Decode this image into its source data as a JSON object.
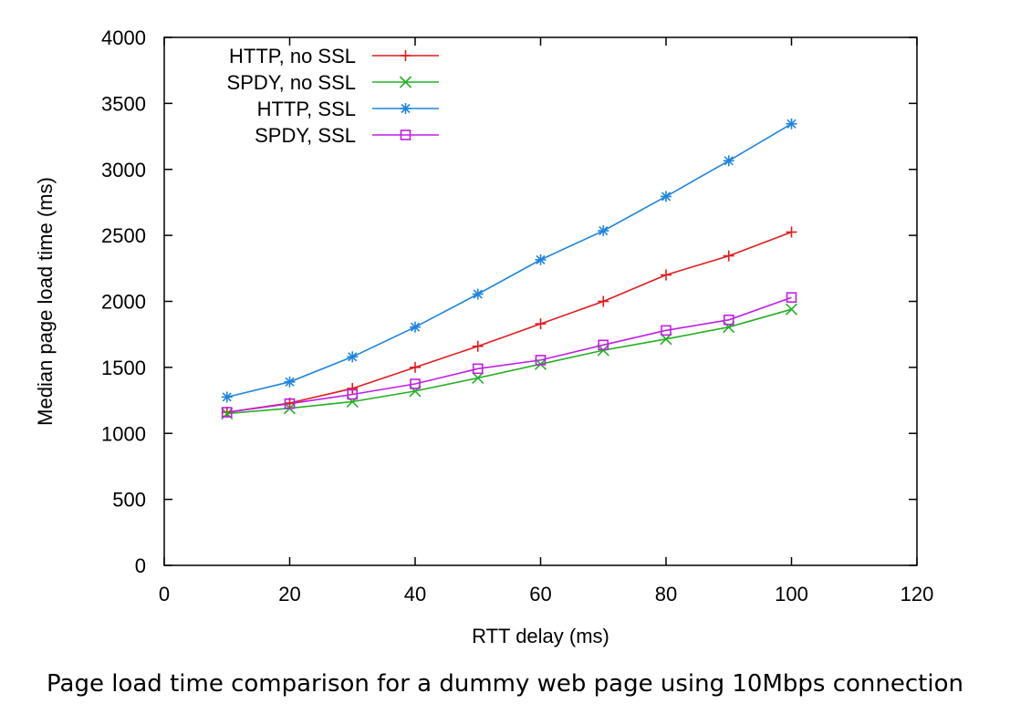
{
  "caption": "Page load time comparison for a dummy web page using 10Mbps connection",
  "chart_data": {
    "type": "line",
    "title": "",
    "xlabel": "RTT delay (ms)",
    "ylabel": "Median page load time (ms)",
    "xlim": [
      0,
      120
    ],
    "ylim": [
      0,
      4000
    ],
    "xticks": [
      0,
      20,
      40,
      60,
      80,
      100,
      120
    ],
    "yticks": [
      0,
      500,
      1000,
      1500,
      2000,
      2500,
      3000,
      3500,
      4000
    ],
    "grid": false,
    "legend_position": "top-left",
    "x": [
      10,
      20,
      30,
      40,
      50,
      60,
      70,
      80,
      90,
      100
    ],
    "series": [
      {
        "name": "HTTP, no SSL",
        "color": "#e31a1c",
        "marker": "plus",
        "values": [
          1160,
          1230,
          1340,
          1500,
          1660,
          1830,
          2000,
          2200,
          2345,
          2525
        ]
      },
      {
        "name": "SPDY, no SSL",
        "color": "#22b022",
        "marker": "cross",
        "values": [
          1150,
          1190,
          1240,
          1320,
          1420,
          1525,
          1630,
          1715,
          1805,
          1940
        ]
      },
      {
        "name": "HTTP, SSL",
        "color": "#1f85de",
        "marker": "star",
        "values": [
          1275,
          1390,
          1580,
          1805,
          2055,
          2315,
          2535,
          2795,
          3065,
          3345
        ]
      },
      {
        "name": "SPDY, SSL",
        "color": "#c11de6",
        "marker": "square",
        "values": [
          1160,
          1225,
          1295,
          1375,
          1490,
          1555,
          1670,
          1780,
          1860,
          2030
        ]
      }
    ]
  }
}
